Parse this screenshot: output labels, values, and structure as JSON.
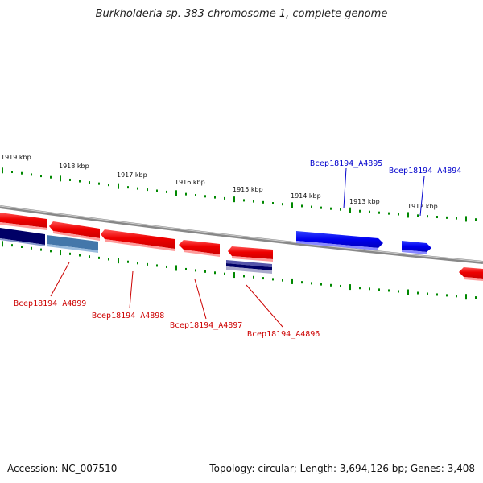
{
  "title": "Burkholderia sp. 383 chromosome 1, complete genome",
  "footer": {
    "accession": "Accession: NC_007510",
    "summary": "Topology: circular; Length: 3,694,126 bp; Genes: 3,408"
  },
  "scale_labels": [
    "1919 kbp",
    "1918 kbp",
    "1917 kbp",
    "1916 kbp",
    "1915 kbp",
    "1914 kbp",
    "1913 kbp",
    "1912 kbp"
  ],
  "genes_forward": [
    {
      "name": "Bcep18194_A4895",
      "color": "#0000cc"
    },
    {
      "name": "Bcep18194_A4894",
      "color": "#0000cc"
    }
  ],
  "genes_reverse": [
    {
      "name": "Bcep18194_A4899",
      "color": "#cc0000"
    },
    {
      "name": "Bcep18194_A4898",
      "color": "#cc0000"
    },
    {
      "name": "Bcep18194_A4897",
      "color": "#cc0000"
    },
    {
      "name": "Bcep18194_A4896",
      "color": "#cc0000"
    }
  ],
  "colors": {
    "gene_red": "#ee1111",
    "gene_blue": "#0000ee",
    "navy": "#000066",
    "steel_blue": "#4477aa",
    "backbone": "#888888",
    "tick": "#008800",
    "label_red": "#cc0000",
    "label_blue": "#0000cc"
  }
}
